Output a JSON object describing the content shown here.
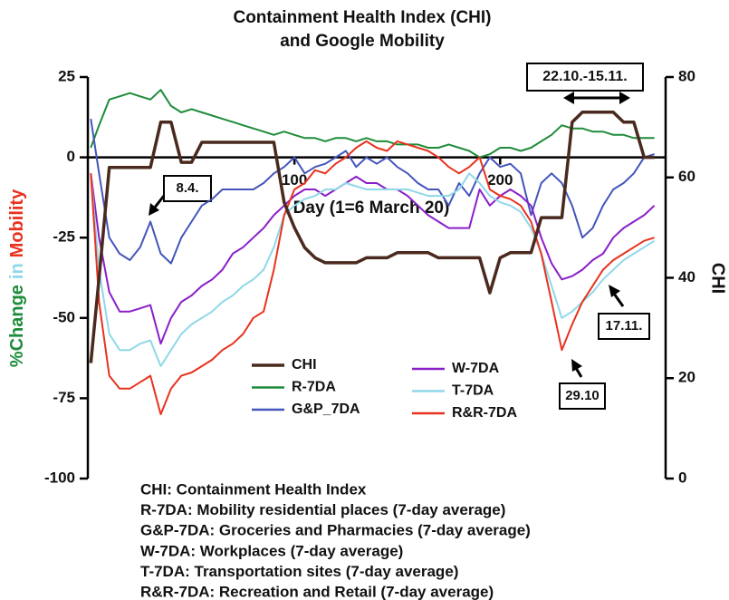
{
  "chart_data": {
    "type": "line",
    "title": [
      "Containment Health Index (CHI)",
      "and Google Mobility"
    ],
    "xlabel": "Day (1=6 March 20)",
    "ylabel_parts": [
      {
        "text": "%Change",
        "color": "#1e8c3a"
      },
      {
        "text": "in",
        "color": "#8fd8e8"
      },
      {
        "text": "Mobility",
        "color": "#e8321e"
      }
    ],
    "y2label": "CHI",
    "y2label_color": "#4a2a1e",
    "xlim": [
      0,
      280
    ],
    "xticks": [
      100,
      200
    ],
    "ylim": [
      -100,
      25
    ],
    "yticks": [
      -100,
      -75,
      -50,
      -25,
      0,
      25
    ],
    "y2lim": [
      0,
      80
    ],
    "y2ticks": [
      0,
      20,
      40,
      60,
      80
    ],
    "x": [
      1,
      5,
      10,
      15,
      20,
      25,
      30,
      35,
      40,
      45,
      50,
      55,
      60,
      65,
      70,
      75,
      80,
      85,
      90,
      95,
      100,
      105,
      110,
      115,
      120,
      125,
      130,
      135,
      140,
      145,
      150,
      155,
      160,
      165,
      170,
      175,
      180,
      185,
      190,
      195,
      200,
      205,
      210,
      215,
      220,
      225,
      230,
      235,
      240,
      245,
      250,
      255,
      260,
      265,
      270,
      275
    ],
    "series": [
      {
        "name": "CHI",
        "color": "#4a2a1e",
        "axis": "y2",
        "values": [
          23,
          40,
          62,
          62,
          62,
          62,
          62,
          71,
          71,
          63,
          63,
          67,
          67,
          67,
          67,
          67,
          67,
          67,
          67,
          55,
          50,
          46,
          44,
          43,
          43,
          43,
          43,
          44,
          44,
          44,
          45,
          45,
          45,
          45,
          44,
          44,
          44,
          44,
          44,
          37,
          44,
          45,
          45,
          45,
          52,
          52,
          52,
          71,
          73,
          73,
          73,
          73,
          71,
          71,
          64,
          64
        ]
      },
      {
        "name": "R-7DA",
        "color": "#1e8c3a",
        "values": [
          3,
          10,
          18,
          19,
          20,
          19,
          18,
          21,
          16,
          14,
          15,
          14,
          13,
          12,
          11,
          10,
          9,
          8,
          7,
          8,
          7,
          6,
          6,
          5,
          6,
          6,
          5,
          6,
          5,
          5,
          4,
          4,
          4,
          3,
          3,
          4,
          3,
          2,
          0,
          1,
          3,
          3,
          2,
          3,
          5,
          7,
          10,
          9,
          9,
          8,
          8,
          7,
          7,
          6,
          6,
          6
        ]
      },
      {
        "name": "G&P_7DA",
        "color": "#4455bb",
        "values": [
          12,
          -5,
          -25,
          -30,
          -32,
          -28,
          -20,
          -30,
          -33,
          -25,
          -20,
          -15,
          -13,
          -10,
          -10,
          -10,
          -10,
          -8,
          -5,
          -3,
          0,
          -5,
          -3,
          -2,
          0,
          2,
          -3,
          0,
          -2,
          0,
          -3,
          -5,
          -8,
          -10,
          -10,
          -15,
          -8,
          -12,
          -5,
          0,
          -3,
          -2,
          -5,
          -18,
          -8,
          -5,
          -8,
          -15,
          -25,
          -22,
          -15,
          -10,
          -8,
          -5,
          0,
          1
        ]
      },
      {
        "name": "W-7DA",
        "color": "#8a1fc8",
        "values": [
          -5,
          -25,
          -42,
          -48,
          -48,
          -47,
          -46,
          -58,
          -50,
          -45,
          -43,
          -40,
          -38,
          -35,
          -30,
          -28,
          -25,
          -22,
          -18,
          -15,
          -12,
          -10,
          -10,
          -12,
          -10,
          -8,
          -6,
          -8,
          -8,
          -10,
          -10,
          -12,
          -15,
          -18,
          -20,
          -22,
          -22,
          -22,
          -10,
          -15,
          -12,
          -10,
          -12,
          -15,
          -25,
          -33,
          -38,
          -37,
          -35,
          -32,
          -30,
          -25,
          -22,
          -20,
          -18,
          -15
        ]
      },
      {
        "name": "T-7DA",
        "color": "#8fd8e8",
        "values": [
          -5,
          -35,
          -55,
          -60,
          -60,
          -58,
          -57,
          -65,
          -60,
          -55,
          -52,
          -50,
          -48,
          -45,
          -43,
          -40,
          -38,
          -35,
          -28,
          -18,
          -15,
          -13,
          -12,
          -10,
          -10,
          -8,
          -9,
          -10,
          -10,
          -10,
          -10,
          -10,
          -11,
          -12,
          -12,
          -12,
          -10,
          -5,
          -8,
          -12,
          -14,
          -15,
          -17,
          -22,
          -30,
          -40,
          -50,
          -48,
          -45,
          -42,
          -38,
          -35,
          -32,
          -30,
          -28,
          -26
        ]
      },
      {
        "name": "R&R-7DA",
        "color": "#e8321e",
        "values": [
          -5,
          -45,
          -68,
          -72,
          -72,
          -70,
          -68,
          -80,
          -72,
          -68,
          -67,
          -65,
          -63,
          -60,
          -58,
          -55,
          -50,
          -48,
          -35,
          -18,
          -10,
          -8,
          -4,
          -5,
          -2,
          0,
          3,
          5,
          3,
          2,
          5,
          4,
          3,
          2,
          0,
          -3,
          -5,
          -3,
          0,
          -10,
          -12,
          -13,
          -15,
          -20,
          -30,
          -45,
          -60,
          -52,
          -45,
          -40,
          -35,
          -32,
          -30,
          -28,
          -26,
          -25
        ]
      }
    ],
    "annotations": [
      "8.4.",
      "22.10.-15.11.",
      "29.10",
      "17.11."
    ],
    "notes": [
      "CHI: Containment Health Index",
      "R-7DA: Mobility residential places (7-day average)",
      "G&P-7DA: Groceries and Pharmacies (7-day average)",
      "W-7DA: Workplaces (7-day average)",
      "T-7DA: Transportation sites (7-day average)",
      "R&R-7DA: Recreation and Retail (7-day average)"
    ]
  }
}
